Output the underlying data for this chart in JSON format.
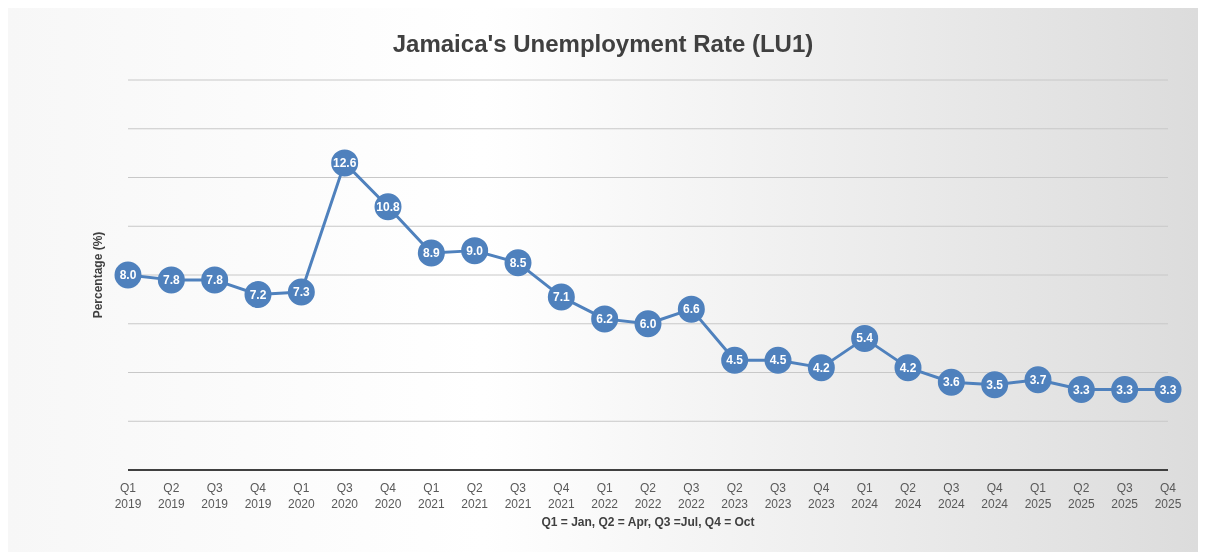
{
  "chart_data": {
    "type": "line",
    "title": "Jamaica's Unemployment Rate (LU1)",
    "xlabel": "Q1 = Jan, Q2 = Apr, Q3 =Jul, Q4 = Oct",
    "ylabel": "Percentage (%)",
    "categories": [
      "Q1 2019",
      "Q2 2019",
      "Q3 2019",
      "Q4 2019",
      "Q1 2020",
      "Q3 2020",
      "Q4 2020",
      "Q1 2021",
      "Q2 2021",
      "Q3 2021",
      "Q4 2021",
      "Q1 2022",
      "Q2 2022",
      "Q3 2022",
      "Q2 2023",
      "Q3 2023",
      "Q4 2023",
      "Q1 2024",
      "Q2 2024",
      "Q3 2024",
      "Q4 2024",
      "Q1 2025",
      "Q2 2025",
      "Q3 2025",
      "Q4 2025"
    ],
    "series": [
      {
        "color": "#4f81bd",
        "values": [
          8.0,
          7.8,
          7.8,
          7.2,
          7.3,
          12.6,
          10.8,
          8.9,
          9.0,
          8.5,
          7.1,
          6.2,
          6.0,
          6.6,
          4.5,
          4.5,
          4.2,
          5.4,
          4.2,
          3.6,
          3.5,
          3.7,
          3.3,
          3.3,
          3.3
        ],
        "value_labels": [
          "8.0",
          "7.8",
          "7.8",
          "7.2",
          "7.3",
          "12.6",
          "10.8",
          "8.9",
          "9.0",
          "8.5",
          "7.1",
          "6.2",
          "6.0",
          "6.6",
          "4.5",
          "4.5",
          "4.2",
          "5.4",
          "4.2",
          "3.6",
          "3.5",
          "3.7",
          "3.3",
          "3.3",
          "3.3"
        ]
      }
    ],
    "ylim": [
      0,
      16
    ],
    "yticks": [
      {
        "value": 0,
        "label": null
      },
      {
        "value": 2,
        "label": null
      },
      {
        "value": 4,
        "label": null
      },
      {
        "value": 6,
        "label": null
      },
      {
        "value": 8,
        "label": null
      },
      {
        "value": 10,
        "label": null
      },
      {
        "value": 12,
        "label": null
      },
      {
        "value": 14,
        "label": null
      },
      {
        "value": 16,
        "label": null
      }
    ],
    "tick_labels": "x",
    "grid": "y",
    "legend": false,
    "marker": "circle",
    "line_style": "solid"
  }
}
